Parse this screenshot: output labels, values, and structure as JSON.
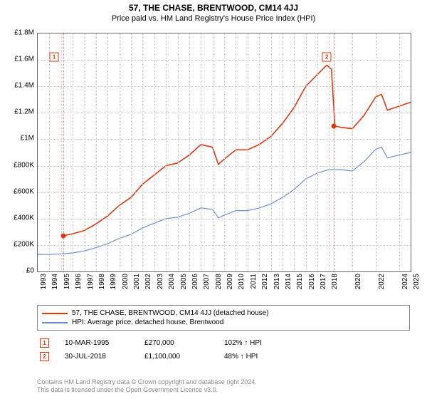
{
  "title1": "57, THE CHASE, BRENTWOOD, CM14 4JJ",
  "title2": "Price paid vs. HM Land Registry's House Price Index (HPI)",
  "chart": {
    "type": "line",
    "ylim": [
      0,
      1800000
    ],
    "ytick_step": 200000,
    "yticks_fmt": [
      "£0",
      "£200K",
      "£400K",
      "£600K",
      "£800K",
      "£1M",
      "£1.2M",
      "£1.4M",
      "£1.6M",
      "£1.8M"
    ],
    "xlim": [
      1993,
      2025
    ],
    "xticks": [
      1993,
      1994,
      1995,
      1996,
      1997,
      1998,
      1999,
      2000,
      2001,
      2002,
      2003,
      2004,
      2005,
      2006,
      2007,
      2008,
      2009,
      2010,
      2011,
      2012,
      2013,
      2014,
      2015,
      2016,
      2017,
      2018,
      2020,
      2022,
      2024,
      2025
    ],
    "grid_color": "#cccccc",
    "border_color": "#666666",
    "background_color": "#ffffff",
    "series": [
      {
        "name": "57, THE CHASE, BRENTWOOD, CM14 4JJ (detached house)",
        "color": "#dc3912",
        "width": 1.6,
        "points": [
          [
            1995.2,
            270000
          ],
          [
            1996,
            285000
          ],
          [
            1997,
            310000
          ],
          [
            1998,
            360000
          ],
          [
            1999,
            420000
          ],
          [
            2000,
            500000
          ],
          [
            2001,
            560000
          ],
          [
            2002,
            660000
          ],
          [
            2003,
            730000
          ],
          [
            2004,
            800000
          ],
          [
            2005,
            820000
          ],
          [
            2006,
            880000
          ],
          [
            2007,
            960000
          ],
          [
            2008,
            940000
          ],
          [
            2008.5,
            810000
          ],
          [
            2009,
            850000
          ],
          [
            2010,
            920000
          ],
          [
            2011,
            920000
          ],
          [
            2012,
            960000
          ],
          [
            2013,
            1020000
          ],
          [
            2014,
            1120000
          ],
          [
            2015,
            1240000
          ],
          [
            2016,
            1400000
          ],
          [
            2017,
            1490000
          ],
          [
            2017.8,
            1560000
          ],
          [
            2018.2,
            1530000
          ],
          [
            2018.5,
            1100000
          ],
          [
            2019,
            1090000
          ],
          [
            2020,
            1080000
          ],
          [
            2021,
            1180000
          ],
          [
            2022,
            1320000
          ],
          [
            2022.5,
            1340000
          ],
          [
            2023,
            1220000
          ],
          [
            2024,
            1250000
          ],
          [
            2025,
            1280000
          ]
        ]
      },
      {
        "name": "HPI: Average price, detached house, Brentwood",
        "color": "#6b8fc9",
        "width": 1.2,
        "points": [
          [
            1993,
            130000
          ],
          [
            1994,
            128000
          ],
          [
            1995,
            133000
          ],
          [
            1996,
            140000
          ],
          [
            1997,
            155000
          ],
          [
            1998,
            180000
          ],
          [
            1999,
            210000
          ],
          [
            2000,
            250000
          ],
          [
            2001,
            280000
          ],
          [
            2002,
            330000
          ],
          [
            2003,
            365000
          ],
          [
            2004,
            400000
          ],
          [
            2005,
            410000
          ],
          [
            2006,
            440000
          ],
          [
            2007,
            480000
          ],
          [
            2008,
            470000
          ],
          [
            2008.5,
            405000
          ],
          [
            2009,
            425000
          ],
          [
            2010,
            460000
          ],
          [
            2011,
            460000
          ],
          [
            2012,
            480000
          ],
          [
            2013,
            510000
          ],
          [
            2014,
            560000
          ],
          [
            2015,
            620000
          ],
          [
            2016,
            700000
          ],
          [
            2017,
            745000
          ],
          [
            2018,
            770000
          ],
          [
            2019,
            770000
          ],
          [
            2020,
            760000
          ],
          [
            2021,
            830000
          ],
          [
            2022,
            925000
          ],
          [
            2022.5,
            940000
          ],
          [
            2023,
            860000
          ],
          [
            2024,
            880000
          ],
          [
            2025,
            900000
          ]
        ]
      }
    ],
    "sale_markers": [
      {
        "n": "1",
        "x": 1995.2,
        "y": 270000,
        "box_x": 1994.4,
        "box_y": 1620000
      },
      {
        "n": "2",
        "x": 2018.4,
        "y": 1100000,
        "box_x": 2017.8,
        "box_y": 1620000
      }
    ],
    "highlight_line_color": "#e97c7c"
  },
  "legend": {
    "s1": "57, THE CHASE, BRENTWOOD, CM14 4JJ (detached house)",
    "s2": "HPI: Average price, detached house, Brentwood"
  },
  "trades": [
    {
      "n": "1",
      "date": "10-MAR-1995",
      "price": "£270,000",
      "pct": "102% ↑ HPI"
    },
    {
      "n": "2",
      "date": "30-JUL-2018",
      "price": "£1,100,000",
      "pct": "48% ↑ HPI"
    }
  ],
  "footer1": "Contains HM Land Registry data © Crown copyright and database right 2024.",
  "footer2": "This data is licensed under the Open Government Licence v3.0."
}
